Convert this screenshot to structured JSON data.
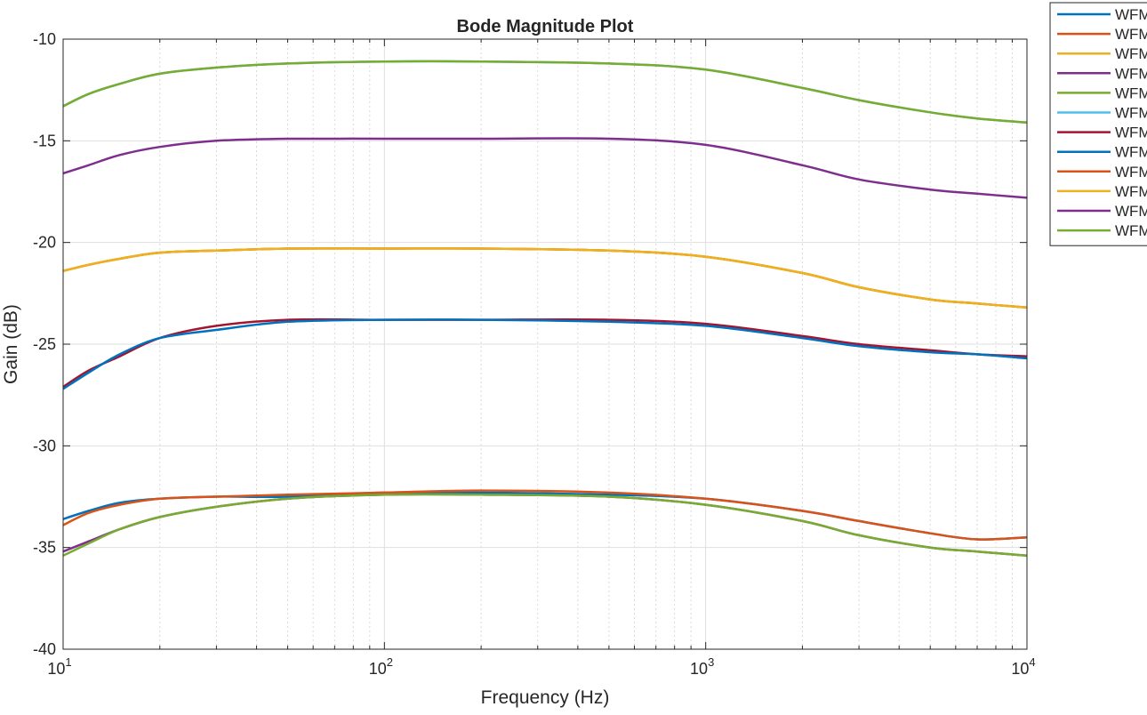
{
  "chart_data": {
    "type": "line",
    "title": "Bode Magnitude Plot",
    "xlabel": "Frequency (Hz)",
    "ylabel": "Gain (dB)",
    "xscale": "log",
    "xlim": [
      10,
      10000
    ],
    "ylim": [
      -40,
      -10
    ],
    "x_ticks": [
      {
        "base": "10",
        "exp": "1"
      },
      {
        "base": "10",
        "exp": "2"
      },
      {
        "base": "10",
        "exp": "3"
      },
      {
        "base": "10",
        "exp": "4"
      }
    ],
    "y_ticks": [
      -10,
      -15,
      -20,
      -25,
      -30,
      -35,
      -40
    ],
    "grid": "major and minor",
    "legend_position": "outside top-right, clipped",
    "x": [
      10,
      12,
      15,
      20,
      30,
      50,
      100,
      200,
      500,
      1000,
      2000,
      3000,
      5000,
      7000,
      10000
    ],
    "series": [
      {
        "name": "WFM",
        "color": "#0072BD",
        "values": [
          -33.6,
          -33.2,
          -32.8,
          -32.6,
          -32.5,
          -32.5,
          -32.3,
          -32.3,
          -32.4,
          -32.6,
          -33.2,
          -33.7,
          -34.3,
          -34.6,
          -34.5
        ]
      },
      {
        "name": "WFM",
        "color": "#D95319",
        "values": [
          -33.9,
          -33.3,
          -32.9,
          -32.6,
          -32.5,
          -32.4,
          -32.3,
          -32.2,
          -32.3,
          -32.6,
          -33.2,
          -33.7,
          -34.3,
          -34.6,
          -34.5
        ]
      },
      {
        "name": "WFM",
        "color": "#EDB120",
        "values": [
          -21.4,
          -21.1,
          -20.8,
          -20.5,
          -20.4,
          -20.3,
          -20.3,
          -20.3,
          -20.4,
          -20.7,
          -21.5,
          -22.2,
          -22.8,
          -23.0,
          -23.2
        ]
      },
      {
        "name": "WFM",
        "color": "#7E2F8E",
        "values": [
          -35.2,
          -34.7,
          -34.1,
          -33.5,
          -33.0,
          -32.6,
          -32.4,
          -32.4,
          -32.5,
          -32.9,
          -33.7,
          -34.4,
          -35.0,
          -35.2,
          -35.4
        ]
      },
      {
        "name": "WFM",
        "color": "#77AC30",
        "values": [
          -35.4,
          -34.8,
          -34.1,
          -33.5,
          -33.0,
          -32.6,
          -32.4,
          -32.4,
          -32.5,
          -32.9,
          -33.7,
          -34.4,
          -35.0,
          -35.2,
          -35.4
        ]
      },
      {
        "name": "WFM",
        "color": "#4DBEEE",
        "values": [
          -13.3,
          -12.7,
          -12.2,
          -11.7,
          -11.4,
          -11.2,
          -11.1,
          -11.1,
          -11.2,
          -11.5,
          -12.4,
          -13.0,
          -13.6,
          -13.9,
          -14.1
        ]
      },
      {
        "name": "WFM",
        "color": "#A2142F",
        "values": [
          -27.1,
          -26.3,
          -25.6,
          -24.7,
          -24.1,
          -23.8,
          -23.8,
          -23.8,
          -23.8,
          -24.0,
          -24.6,
          -25.0,
          -25.3,
          -25.5,
          -25.6
        ]
      },
      {
        "name": "WFM",
        "color": "#0072BD",
        "values": [
          -27.2,
          -26.4,
          -25.5,
          -24.7,
          -24.3,
          -23.9,
          -23.8,
          -23.8,
          -23.9,
          -24.1,
          -24.7,
          -25.1,
          -25.4,
          -25.5,
          -25.7
        ]
      },
      {
        "name": "WFM",
        "color": "#D95319",
        "values": [
          -21.4,
          -21.1,
          -20.8,
          -20.5,
          -20.4,
          -20.3,
          -20.3,
          -20.3,
          -20.4,
          -20.7,
          -21.5,
          -22.2,
          -22.8,
          -23.0,
          -23.2
        ]
      },
      {
        "name": "WFM",
        "color": "#EDB120",
        "values": [
          -21.4,
          -21.1,
          -20.8,
          -20.5,
          -20.4,
          -20.3,
          -20.3,
          -20.3,
          -20.4,
          -20.7,
          -21.5,
          -22.2,
          -22.8,
          -23.0,
          -23.2
        ]
      },
      {
        "name": "WFM",
        "color": "#7E2F8E",
        "values": [
          -16.6,
          -16.2,
          -15.7,
          -15.3,
          -15.0,
          -14.9,
          -14.9,
          -14.9,
          -14.9,
          -15.2,
          -16.2,
          -16.9,
          -17.4,
          -17.6,
          -17.8
        ]
      },
      {
        "name": "WFM",
        "color": "#77AC30",
        "values": [
          -13.3,
          -12.7,
          -12.2,
          -11.7,
          -11.4,
          -11.2,
          -11.1,
          -11.1,
          -11.2,
          -11.5,
          -12.4,
          -13.0,
          -13.6,
          -13.9,
          -14.1
        ]
      }
    ]
  }
}
